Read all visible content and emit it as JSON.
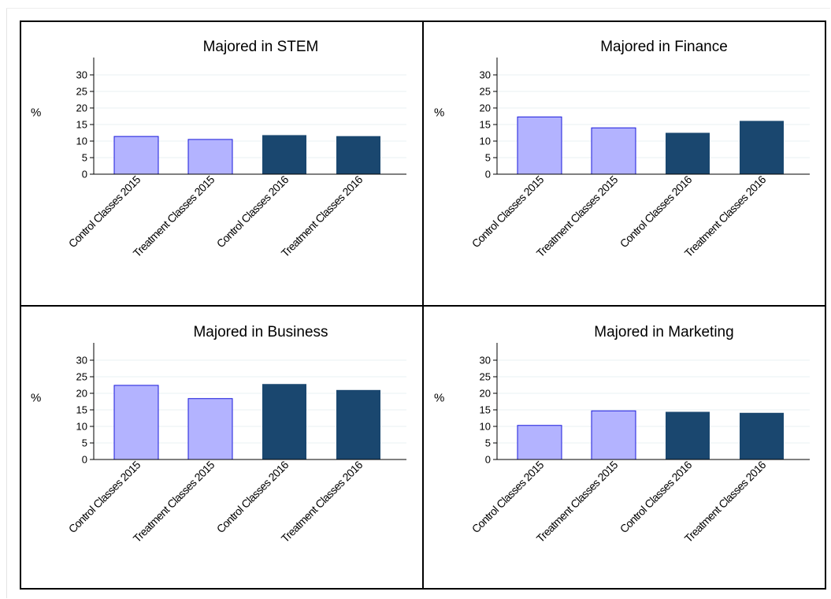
{
  "colors": {
    "bar_2015_fill": "#b3b3ff",
    "bar_2015_stroke": "#1a1adb",
    "bar_2016_fill": "#1a476f",
    "gridline": "#eaf2f3",
    "axis": "#000000",
    "panel_border": "#000000",
    "background": "#ffffff"
  },
  "chart_data": [
    {
      "type": "bar",
      "title": "Majored in STEM",
      "ylabel": "%",
      "ylim": [
        0,
        30
      ],
      "yticks": [
        0,
        5,
        10,
        15,
        20,
        25,
        30
      ],
      "grid": true,
      "categories": [
        "Control Classes 2015",
        "Treatment Classes 2015",
        "Control Classes 2016",
        "Treatment Classes 2016"
      ],
      "values": [
        11.4,
        10.5,
        11.8,
        11.5
      ]
    },
    {
      "type": "bar",
      "title": "Majored in Finance",
      "ylabel": "%",
      "ylim": [
        0,
        30
      ],
      "yticks": [
        0,
        5,
        10,
        15,
        20,
        25,
        30
      ],
      "grid": true,
      "categories": [
        "Control Classes 2015",
        "Treatment Classes 2015",
        "Control Classes 2016",
        "Treatment Classes 2016"
      ],
      "values": [
        17.3,
        14.0,
        12.5,
        16.1
      ]
    },
    {
      "type": "bar",
      "title": "Majored in Business",
      "ylabel": "%",
      "ylim": [
        0,
        30
      ],
      "yticks": [
        0,
        5,
        10,
        15,
        20,
        25,
        30
      ],
      "grid": true,
      "categories": [
        "Control Classes 2015",
        "Treatment Classes 2015",
        "Control Classes 2016",
        "Treatment Classes 2016"
      ],
      "values": [
        22.4,
        18.4,
        22.8,
        21.0
      ]
    },
    {
      "type": "bar",
      "title": "Majored in Marketing",
      "ylabel": "%",
      "ylim": [
        0,
        30
      ],
      "yticks": [
        0,
        5,
        10,
        15,
        20,
        25,
        30
      ],
      "grid": true,
      "categories": [
        "Control Classes 2015",
        "Treatment Classes 2015",
        "Control Classes 2016",
        "Treatment Classes 2016"
      ],
      "values": [
        10.3,
        14.7,
        14.4,
        14.1
      ]
    }
  ]
}
